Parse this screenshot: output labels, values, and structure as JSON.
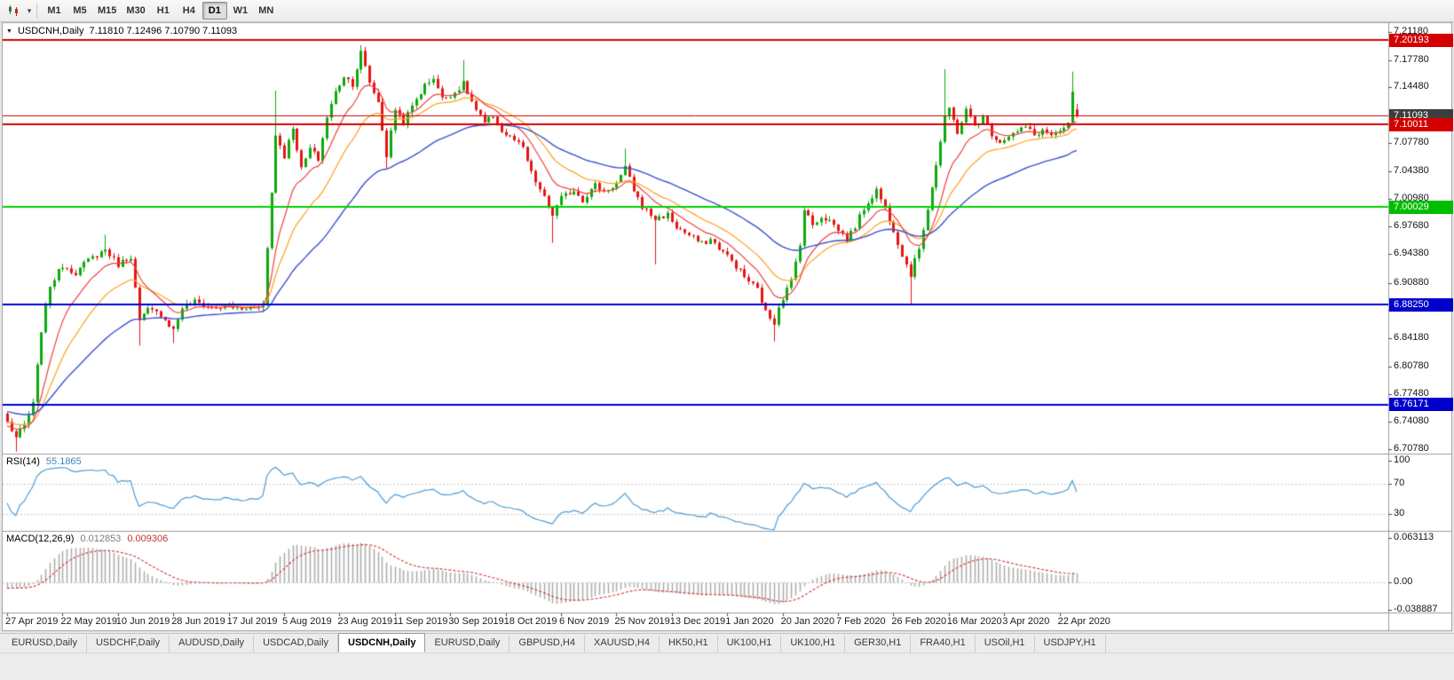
{
  "icons": {
    "chart_menu": "▼",
    "dropdown": "▾"
  },
  "toolbar": {
    "timeframes": [
      {
        "label": "M1",
        "active": false
      },
      {
        "label": "M5",
        "active": false
      },
      {
        "label": "M15",
        "active": false
      },
      {
        "label": "M30",
        "active": false
      },
      {
        "label": "H1",
        "active": false
      },
      {
        "label": "H4",
        "active": false
      },
      {
        "label": "D1",
        "active": true
      },
      {
        "label": "W1",
        "active": false
      },
      {
        "label": "MN",
        "active": false
      }
    ]
  },
  "chart": {
    "symbol": "USDCNH,Daily",
    "ohlc_text": "7.11810 7.12496 7.10790 7.11093",
    "open": "7.11810",
    "high": "7.12496",
    "low": "7.10790",
    "close": "7.11093"
  },
  "chart_data": {
    "type": "candlestick",
    "symbol": "USDCNH",
    "timeframe": "Daily",
    "bar_count": 252,
    "price_axis": {
      "min": 6.7078,
      "max": 7.2118,
      "ticks": [
        "7.21180",
        "7.17780",
        "7.14480",
        "7.07780",
        "7.04380",
        "7.00980",
        "6.97680",
        "6.94380",
        "6.90880",
        "6.87580",
        "6.84180",
        "6.80780",
        "6.77480",
        "6.74080",
        "6.70780"
      ]
    },
    "levels": [
      {
        "value": 7.20193,
        "label": "7.20193",
        "color": "red"
      },
      {
        "value": 7.11093,
        "label": "7.11093",
        "color": "bid"
      },
      {
        "value": 7.10011,
        "label": "7.10011",
        "color": "red"
      },
      {
        "value": 7.00029,
        "label": "7.00029",
        "color": "green"
      },
      {
        "value": 6.8825,
        "label": "6.88250",
        "color": "blue"
      },
      {
        "value": 6.76171,
        "label": "6.76171",
        "color": "blue"
      }
    ],
    "date_labels": [
      {
        "label": "27 Apr 2019",
        "bar": 0
      },
      {
        "label": "22 May 2019",
        "bar": 13
      },
      {
        "label": "10 Jun 2019",
        "bar": 26
      },
      {
        "label": "28 Jun 2019",
        "bar": 39
      },
      {
        "label": "17 Jul 2019",
        "bar": 52
      },
      {
        "label": "5 Aug 2019",
        "bar": 65
      },
      {
        "label": "23 Aug 2019",
        "bar": 78
      },
      {
        "label": "11 Sep 2019",
        "bar": 91
      },
      {
        "label": "30 Sep 2019",
        "bar": 104
      },
      {
        "label": "18 Oct 2019",
        "bar": 117
      },
      {
        "label": "6 Nov 2019",
        "bar": 130
      },
      {
        "label": "25 Nov 2019",
        "bar": 143
      },
      {
        "label": "13 Dec 2019",
        "bar": 156
      },
      {
        "label": "1 Jan 2020",
        "bar": 169
      },
      {
        "label": "20 Jan 2020",
        "bar": 182
      },
      {
        "label": "7 Feb 2020",
        "bar": 195
      },
      {
        "label": "26 Feb 2020",
        "bar": 208
      },
      {
        "label": "16 Mar 2020",
        "bar": 221
      },
      {
        "label": "3 Apr 2020",
        "bar": 234
      },
      {
        "label": "22 Apr 2020",
        "bar": 247
      }
    ],
    "close_anchors": [
      [
        0,
        6.74
      ],
      [
        2,
        6.722
      ],
      [
        4,
        6.736
      ],
      [
        6,
        6.762
      ],
      [
        8,
        6.852
      ],
      [
        10,
        6.906
      ],
      [
        13,
        6.93
      ],
      [
        16,
        6.921
      ],
      [
        19,
        6.936
      ],
      [
        23,
        6.949
      ],
      [
        26,
        6.931
      ],
      [
        29,
        6.941
      ],
      [
        31,
        6.862
      ],
      [
        33,
        6.876
      ],
      [
        36,
        6.871
      ],
      [
        39,
        6.852
      ],
      [
        41,
        6.879
      ],
      [
        44,
        6.886
      ],
      [
        48,
        6.878
      ],
      [
        52,
        6.881
      ],
      [
        55,
        6.876
      ],
      [
        58,
        6.881
      ],
      [
        60,
        6.883
      ],
      [
        62,
        7.018
      ],
      [
        63,
        7.088
      ],
      [
        65,
        7.062
      ],
      [
        67,
        7.097
      ],
      [
        69,
        7.046
      ],
      [
        71,
        7.071
      ],
      [
        73,
        7.058
      ],
      [
        75,
        7.109
      ],
      [
        77,
        7.139
      ],
      [
        79,
        7.159
      ],
      [
        81,
        7.149
      ],
      [
        83,
        7.187
      ],
      [
        85,
        7.151
      ],
      [
        87,
        7.127
      ],
      [
        89,
        7.062
      ],
      [
        91,
        7.119
      ],
      [
        93,
        7.103
      ],
      [
        96,
        7.131
      ],
      [
        98,
        7.147
      ],
      [
        100,
        7.157
      ],
      [
        102,
        7.131
      ],
      [
        105,
        7.139
      ],
      [
        107,
        7.149
      ],
      [
        110,
        7.117
      ],
      [
        112,
        7.101
      ],
      [
        114,
        7.111
      ],
      [
        116,
        7.091
      ],
      [
        119,
        7.081
      ],
      [
        121,
        7.071
      ],
      [
        123,
        7.041
      ],
      [
        125,
        7.021
      ],
      [
        128,
        6.991
      ],
      [
        130,
        7.011
      ],
      [
        133,
        7.021
      ],
      [
        135,
        7.009
      ],
      [
        138,
        7.027
      ],
      [
        140,
        7.019
      ],
      [
        143,
        7.029
      ],
      [
        145,
        7.047
      ],
      [
        147,
        7.021
      ],
      [
        149,
        7.001
      ],
      [
        152,
        6.986
      ],
      [
        155,
        6.991
      ],
      [
        157,
        6.976
      ],
      [
        160,
        6.966
      ],
      [
        163,
        6.956
      ],
      [
        165,
        6.961
      ],
      [
        169,
        6.941
      ],
      [
        171,
        6.929
      ],
      [
        173,
        6.916
      ],
      [
        176,
        6.901
      ],
      [
        178,
        6.873
      ],
      [
        180,
        6.861
      ],
      [
        181,
        6.881
      ],
      [
        184,
        6.911
      ],
      [
        186,
        6.957
      ],
      [
        187,
        6.997
      ],
      [
        189,
        6.979
      ],
      [
        191,
        6.989
      ],
      [
        193,
        6.984
      ],
      [
        195,
        6.973
      ],
      [
        197,
        6.961
      ],
      [
        199,
        6.977
      ],
      [
        201,
        6.999
      ],
      [
        204,
        7.021
      ],
      [
        206,
        6.999
      ],
      [
        208,
        6.973
      ],
      [
        210,
        6.943
      ],
      [
        212,
        6.919
      ],
      [
        214,
        6.951
      ],
      [
        216,
        6.999
      ],
      [
        218,
        7.051
      ],
      [
        220,
        7.107
      ],
      [
        221,
        7.119
      ],
      [
        223,
        7.091
      ],
      [
        225,
        7.117
      ],
      [
        227,
        7.099
      ],
      [
        229,
        7.109
      ],
      [
        231,
        7.089
      ],
      [
        233,
        7.079
      ],
      [
        235,
        7.087
      ],
      [
        237,
        7.091
      ],
      [
        239,
        7.097
      ],
      [
        241,
        7.087
      ],
      [
        243,
        7.093
      ],
      [
        245,
        7.087
      ],
      [
        247,
        7.089
      ],
      [
        249,
        7.101
      ],
      [
        250,
        7.137
      ],
      [
        251,
        7.11093
      ]
    ],
    "wick_overrides": [
      {
        "i": 2,
        "low": 6.705
      },
      {
        "i": 23,
        "high": 6.967
      },
      {
        "i": 31,
        "low": 6.833
      },
      {
        "i": 39,
        "low": 6.836
      },
      {
        "i": 63,
        "high": 7.141
      },
      {
        "i": 83,
        "high": 7.196
      },
      {
        "i": 89,
        "low": 7.047
      },
      {
        "i": 107,
        "high": 7.178
      },
      {
        "i": 128,
        "low": 6.957
      },
      {
        "i": 145,
        "high": 7.071
      },
      {
        "i": 152,
        "low": 6.931
      },
      {
        "i": 180,
        "low": 6.838
      },
      {
        "i": 212,
        "low": 6.883
      },
      {
        "i": 220,
        "high": 7.167
      },
      {
        "i": 250,
        "high": 7.164
      }
    ],
    "last_bar": {
      "open": 7.1181,
      "high": 7.12496,
      "low": 7.1079,
      "close": 7.11093
    },
    "moving_averages": [
      {
        "name": "fast",
        "period": 10
      },
      {
        "name": "mid",
        "period": 20
      },
      {
        "name": "slow",
        "period": 45
      }
    ],
    "indicators": {
      "rsi": {
        "name": "RSI(14)",
        "period": 14,
        "value": "55.1865",
        "ticks": [
          "100",
          "70",
          "30"
        ],
        "range": [
          0,
          100
        ],
        "levels": [
          70,
          30
        ]
      },
      "macd": {
        "name": "MACD(12,26,9)",
        "fast": 12,
        "slow": 26,
        "signal": 9,
        "value_main": "0.012853",
        "value_signal": "0.009306",
        "ticks": [
          "0.063113",
          "0.00",
          "-0.038887"
        ],
        "range": [
          -0.038887,
          0.063113
        ]
      }
    }
  },
  "tabs": {
    "active_index": 4,
    "items": [
      "EURUSD,Daily",
      "USDCHF,Daily",
      "AUDUSD,Daily",
      "USDCAD,Daily",
      "USDCNH,Daily",
      "EURUSD,Daily",
      "GBPUSD,H4",
      "XAUUSD,H4",
      "HK50,H1",
      "UK100,H1",
      "UK100,H1",
      "GER30,H1",
      "FRA40,H1",
      "USOil,H1",
      "USDJPY,H1"
    ]
  },
  "colors": {
    "up_candle": "#0caa0c",
    "down_candle": "#e61414",
    "ma_fast": "#ef4040",
    "ma_mid": "#ffa01e",
    "ma_slow": "#3c52cc",
    "rsi_line": "#4e9bd4",
    "macd_hist": "#ababab",
    "macd_signal": "#d43434",
    "level_red": "#d40000",
    "level_green": "#00d200",
    "level_blue": "#0000d6",
    "bid_badge": "#3d3d3d"
  }
}
